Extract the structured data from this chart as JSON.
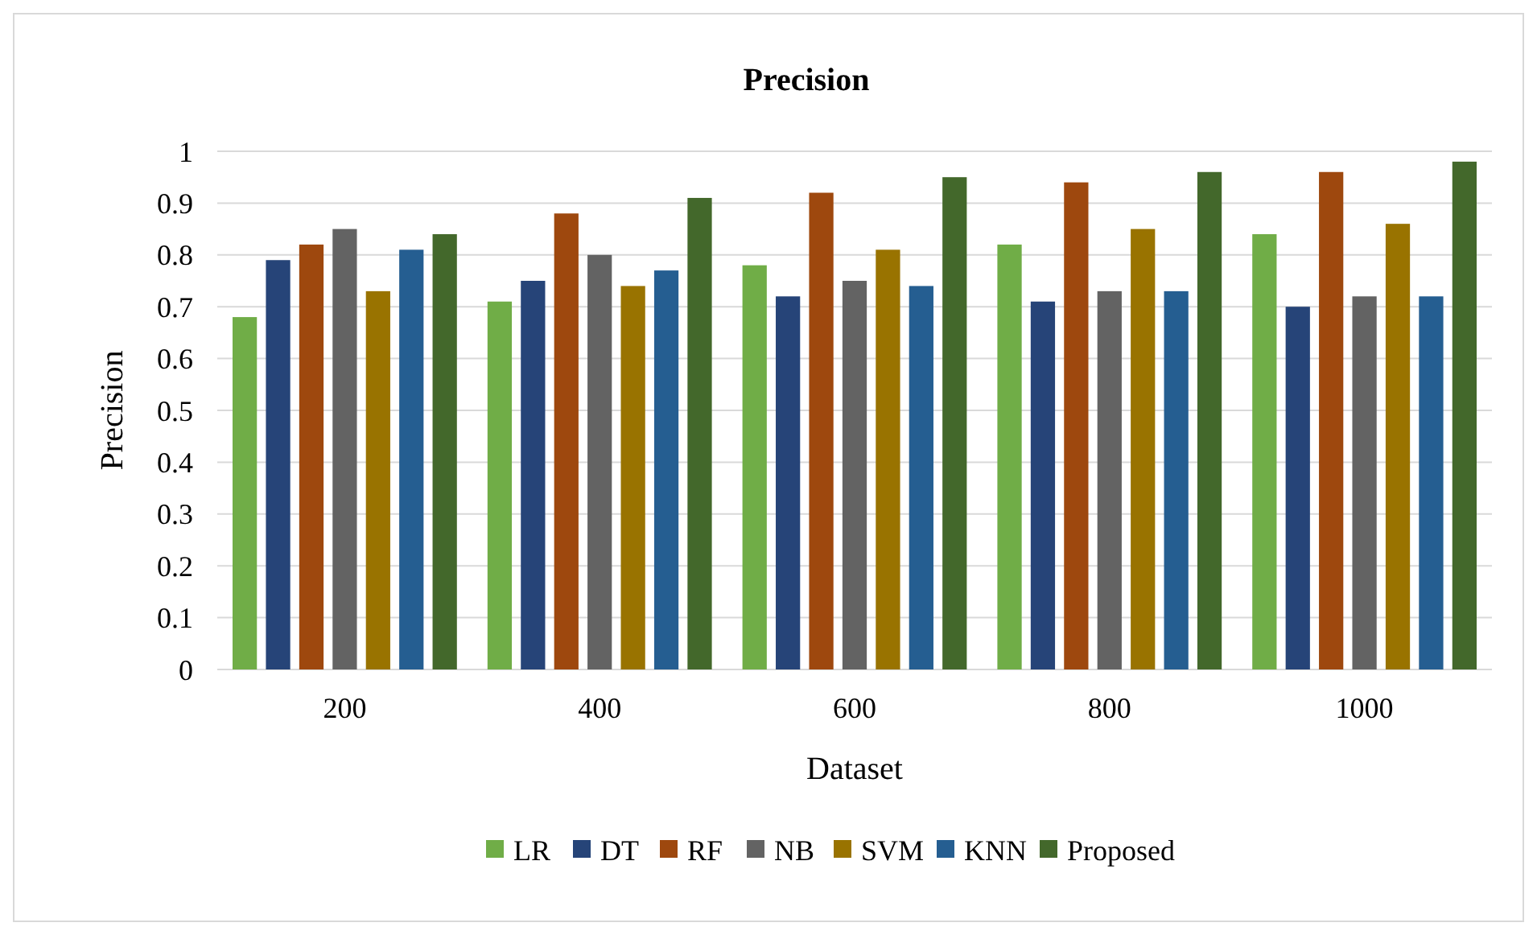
{
  "chart_data": {
    "type": "bar",
    "title": "Precision",
    "xlabel": "Dataset",
    "ylabel": "Precision",
    "categories": [
      "200",
      "400",
      "600",
      "800",
      "1000"
    ],
    "series": [
      {
        "name": "LR",
        "color": "#70ad47",
        "values": [
          0.68,
          0.71,
          0.78,
          0.82,
          0.84
        ]
      },
      {
        "name": "DT",
        "color": "#264478",
        "values": [
          0.79,
          0.75,
          0.72,
          0.71,
          0.7
        ]
      },
      {
        "name": "RF",
        "color": "#9e480e",
        "values": [
          0.82,
          0.88,
          0.92,
          0.94,
          0.96
        ]
      },
      {
        "name": "NB",
        "color": "#636363",
        "values": [
          0.85,
          0.8,
          0.75,
          0.73,
          0.72
        ]
      },
      {
        "name": "SVM",
        "color": "#997300",
        "values": [
          0.73,
          0.74,
          0.81,
          0.85,
          0.86
        ]
      },
      {
        "name": "KNN",
        "color": "#255e91",
        "values": [
          0.81,
          0.77,
          0.74,
          0.73,
          0.72
        ]
      },
      {
        "name": "Proposed",
        "color": "#43682b",
        "values": [
          0.84,
          0.91,
          0.95,
          0.96,
          0.98
        ]
      }
    ],
    "ylim": [
      0,
      1
    ],
    "yticks": [
      0,
      0.1,
      0.2,
      0.3,
      0.4,
      0.5,
      0.6,
      0.7,
      0.8,
      0.9,
      1
    ],
    "grid": "y",
    "legend": "bottom"
  }
}
